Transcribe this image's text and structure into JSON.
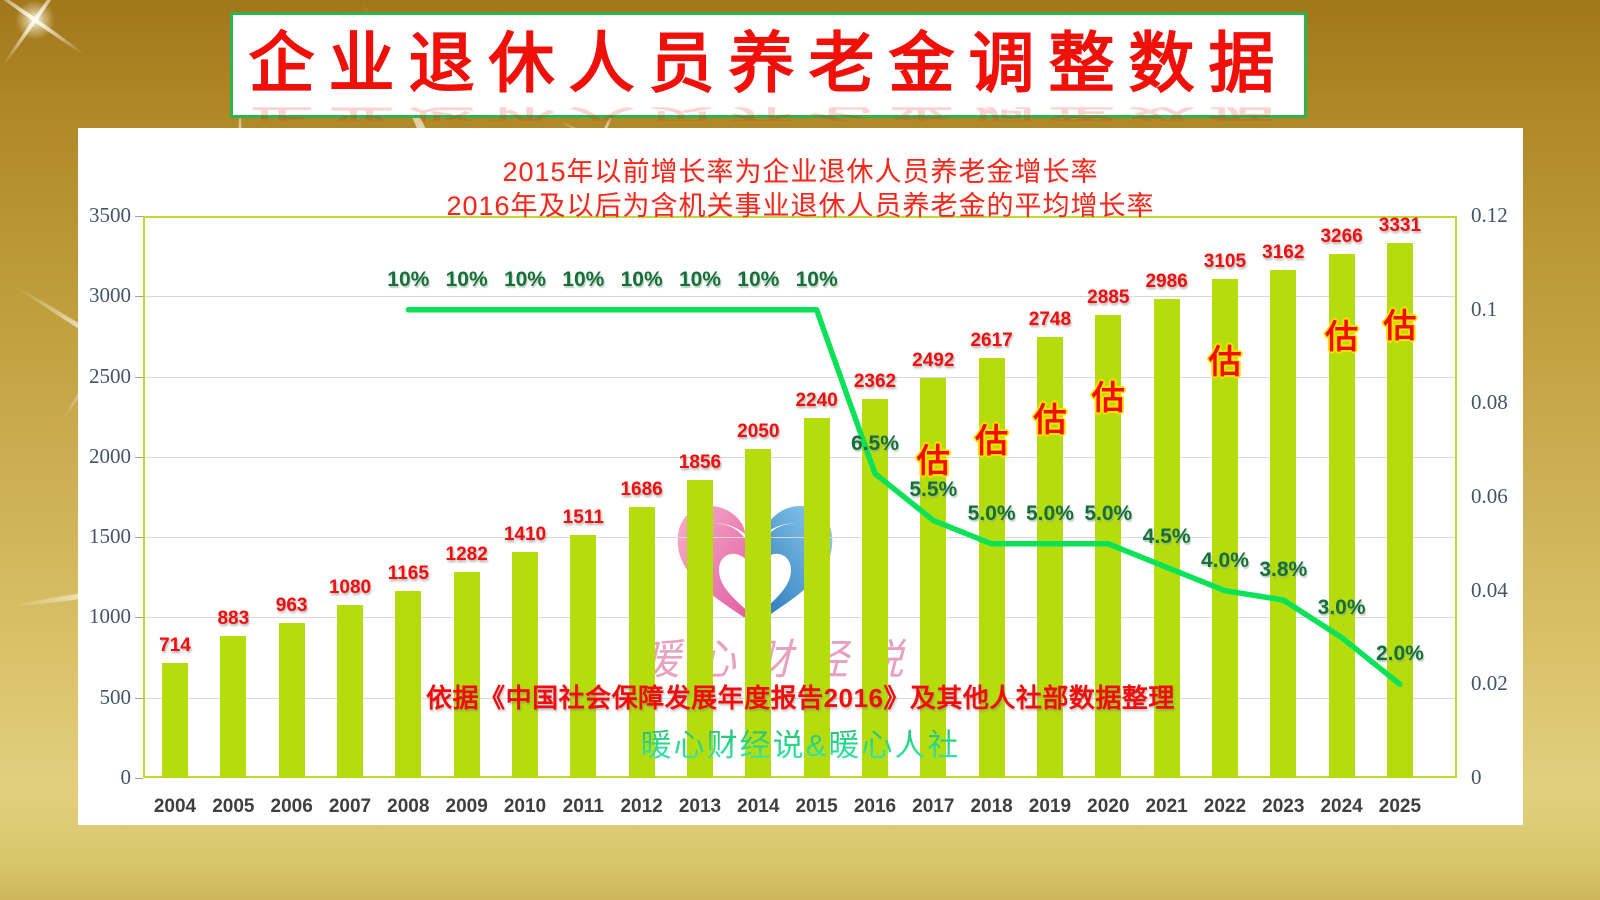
{
  "page": {
    "title": "企业退休人员养老金调整数据",
    "subtitle_line1": "2015年以前增长率为企业退休人员养老金增长率",
    "subtitle_line2": "2016年及以后为含机关事业退休人员养老金的平均增长率",
    "source_note": "依据《中国社会保障发展年度报告2016》及其他人社部数据整理",
    "credit": "暖心财经说&暖心人社",
    "watermark_text": "暖心财经说",
    "estimate_label": "估"
  },
  "colors": {
    "bar": "#b5dd0e",
    "line": "#0ce257",
    "value_label": "#f20d0d",
    "percent_label": "#156f3a",
    "estimate_fill": "#f20d0d",
    "estimate_outline": "#ffe000",
    "axis_label": "#44546a",
    "year_label": "#3f3f3f",
    "banner_border": "#2eb44e",
    "title_red": "#f0100a",
    "grid": "#d9d9d9",
    "plot_frame": "#c3d830",
    "logo_pink": "#e0519a",
    "logo_blue": "#1b6cb5"
  },
  "chart_data": {
    "type": "bar",
    "combo": "bar+line",
    "categories": [
      "2004",
      "2005",
      "2006",
      "2007",
      "2008",
      "2009",
      "2010",
      "2011",
      "2012",
      "2013",
      "2014",
      "2015",
      "2016",
      "2017",
      "2018",
      "2019",
      "2020",
      "2021",
      "2022",
      "2023",
      "2024",
      "2025"
    ],
    "series": [
      {
        "name": "pension-amount-bars",
        "type": "bar",
        "axis": "left",
        "values": [
          714,
          883,
          963,
          1080,
          1165,
          1282,
          1410,
          1511,
          1686,
          1856,
          2050,
          2240,
          2362,
          2492,
          2617,
          2748,
          2885,
          2986,
          3105,
          3162,
          3266,
          3331
        ],
        "estimated_years": [
          "2017",
          "2018",
          "2019",
          "2020",
          "2022",
          "2024",
          "2025"
        ]
      },
      {
        "name": "growth-rate-line",
        "type": "line",
        "axis": "right",
        "start_category": "2008",
        "values": [
          0.1,
          0.1,
          0.1,
          0.1,
          0.1,
          0.1,
          0.1,
          0.1,
          0.065,
          0.055,
          0.05,
          0.05,
          0.05,
          0.045,
          0.04,
          0.038,
          0.03,
          0.02
        ],
        "point_labels": [
          "10%",
          "10%",
          "10%",
          "10%",
          "10%",
          "10%",
          "10%",
          "10%",
          "6.5%",
          "5.5%",
          "5.0%",
          "5.0%",
          "5.0%",
          "4.5%",
          "4.0%",
          "3.8%",
          "3.0%",
          "2.0%"
        ]
      }
    ],
    "title": "企业退休人员养老金调整数据",
    "xlabel": "",
    "ylabel": "",
    "left_axis": {
      "min": 0,
      "max": 3500,
      "step": 500,
      "tick_labels": [
        "3500",
        "3000",
        "2500",
        "2000",
        "1500",
        "1000",
        "500",
        "0"
      ]
    },
    "right_axis": {
      "min": 0,
      "max": 0.12,
      "step": 0.02,
      "tick_labels": [
        "0.12",
        "0.1",
        "0.08",
        "0.06",
        "0.04",
        "0.02",
        "0"
      ]
    },
    "grid": true,
    "legend": "none"
  }
}
